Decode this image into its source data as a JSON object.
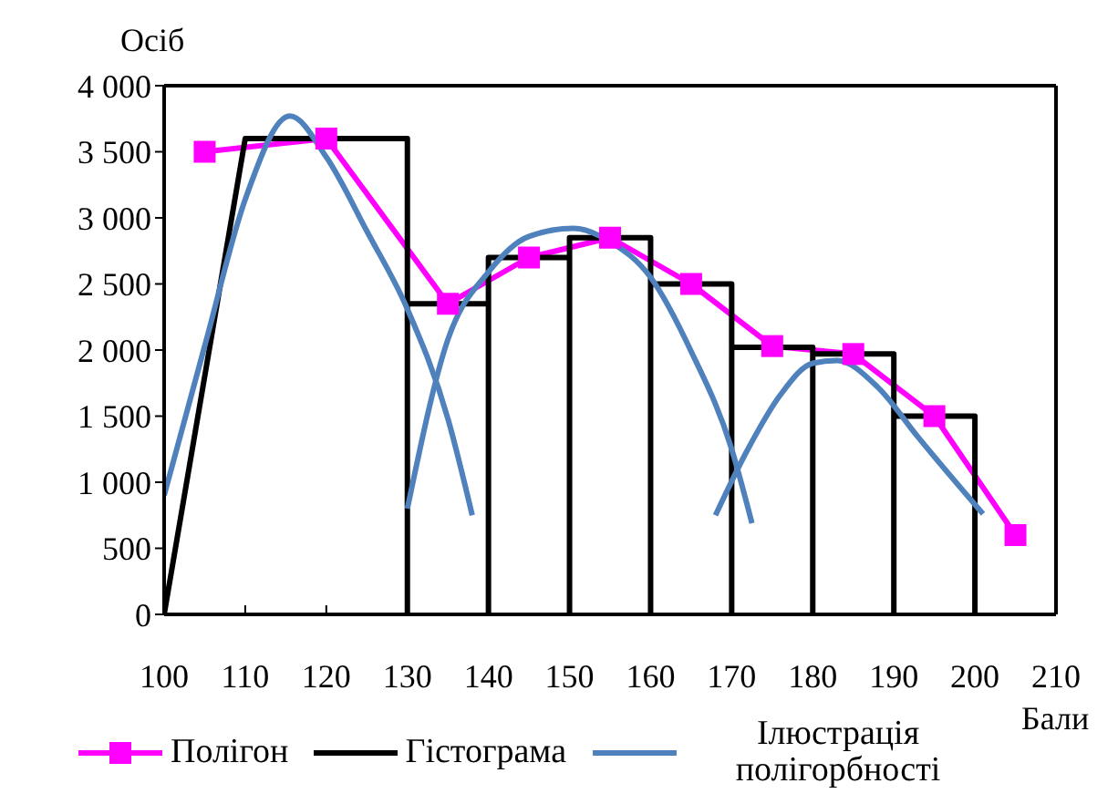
{
  "chart_data": {
    "type": "line",
    "xlabel": "Бали",
    "ylabel": "Осіб",
    "xlim": [
      100,
      210
    ],
    "xticks": [
      100,
      110,
      120,
      130,
      140,
      150,
      160,
      170,
      180,
      190,
      200,
      210
    ],
    "ylim": [
      0,
      4000
    ],
    "yticks": [
      0,
      500,
      {
        "value": 1000,
        "label": "1 000"
      },
      {
        "value": 1500,
        "label": "1 500"
      },
      {
        "value": 2000,
        "label": "2 000"
      },
      {
        "value": 2500,
        "label": "2 500"
      },
      {
        "value": 3000,
        "label": "3 000"
      },
      {
        "value": 3500,
        "label": "3 500"
      },
      {
        "value": 4000,
        "label": "4 000"
      }
    ],
    "legend": "bottom",
    "series": [
      {
        "name": "Полігон",
        "color": "#ff00ff",
        "marker": "square",
        "x": [
          105,
          120,
          135,
          145,
          155,
          165,
          175,
          185,
          195,
          205
        ],
        "values": [
          3500,
          3600,
          2350,
          2700,
          2850,
          2500,
          2030,
          1970,
          1500,
          600
        ]
      },
      {
        "name": "Гістограма",
        "color": "#000000",
        "marker": "none",
        "x": [
          100,
          110,
          130,
          130,
          130,
          140,
          140,
          140,
          150,
          150,
          150,
          160,
          160,
          160,
          170,
          170,
          170,
          180,
          180,
          180,
          190,
          190,
          190,
          200,
          200
        ],
        "values": [
          0,
          3600,
          3600,
          0,
          2350,
          2350,
          0,
          2700,
          2700,
          0,
          2850,
          2850,
          0,
          2500,
          2500,
          0,
          2020,
          2020,
          0,
          1970,
          1970,
          0,
          1500,
          1500,
          0
        ]
      },
      {
        "name": "Ілюстрація полігорбності",
        "color": "#4f81bd",
        "marker": "none",
        "x": [
          100,
          105,
          110,
          115.5,
          120,
          125,
          130,
          135,
          138
        ],
        "values": [
          900,
          2030,
          3140,
          3770,
          3460,
          2900,
          2310,
          1480,
          750
        ]
      },
      {
        "color": "#4f81bd",
        "marker": "none",
        "x": [
          130,
          135,
          140,
          145,
          150.5,
          155,
          160,
          165,
          170,
          172.5
        ],
        "values": [
          800,
          2080,
          2590,
          2860,
          2920,
          2820,
          2550,
          1990,
          1250,
          690
        ]
      },
      {
        "color": "#4f81bd",
        "marker": "none",
        "x": [
          168,
          172,
          176,
          180,
          183,
          188,
          193,
          201
        ],
        "values": [
          750,
          1250,
          1660,
          1900,
          1920,
          1720,
          1340,
          760
        ]
      }
    ]
  }
}
